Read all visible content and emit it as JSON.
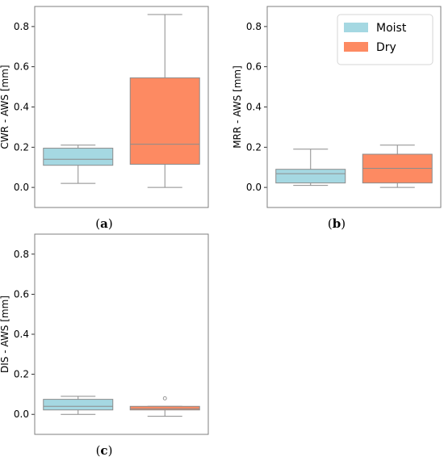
{
  "colors": {
    "moist": "#a5d8e2",
    "dry": "#fd8a62",
    "frame": "#7f7f7f",
    "whisker": "#8c8c8c"
  },
  "legend": {
    "entries": [
      "Moist",
      "Dry"
    ],
    "placement": "top-right",
    "panel": "b"
  },
  "chart_data": [
    {
      "type": "box",
      "panel_label": "(a)",
      "ylabel": "CWR - AWS [mm]",
      "ylim": [
        -0.1,
        0.9
      ],
      "yticks": [
        "0.0",
        "0.2",
        "0.4",
        "0.6",
        "0.8"
      ],
      "categories": [
        "Moist",
        "Dry"
      ],
      "series": [
        {
          "name": "Moist",
          "whislo": 0.02,
          "q1": 0.11,
          "median": 0.14,
          "q3": 0.195,
          "whishi": 0.21,
          "fliers": []
        },
        {
          "name": "Dry",
          "whislo": 0.0,
          "q1": 0.115,
          "median": 0.215,
          "q3": 0.545,
          "whishi": 0.86,
          "fliers": []
        }
      ]
    },
    {
      "type": "box",
      "panel_label": "(b)",
      "ylabel": "MRR - AWS [mm]",
      "ylim": [
        -0.1,
        0.9
      ],
      "yticks": [
        "0.0",
        "0.2",
        "0.4",
        "0.6",
        "0.8"
      ],
      "categories": [
        "Moist",
        "Dry"
      ],
      "series": [
        {
          "name": "Moist",
          "whislo": 0.01,
          "q1": 0.022,
          "median": 0.068,
          "q3": 0.09,
          "whishi": 0.19,
          "fliers": []
        },
        {
          "name": "Dry",
          "whislo": 0.0,
          "q1": 0.022,
          "median": 0.095,
          "q3": 0.165,
          "whishi": 0.21,
          "fliers": []
        }
      ]
    },
    {
      "type": "box",
      "panel_label": "(c)",
      "ylabel": "DIS - AWS [mm]",
      "ylim": [
        -0.1,
        0.9
      ],
      "yticks": [
        "0.0",
        "0.2",
        "0.4",
        "0.6",
        "0.8"
      ],
      "categories": [
        "Moist",
        "Dry"
      ],
      "series": [
        {
          "name": "Moist",
          "whislo": 0.0,
          "q1": 0.022,
          "median": 0.04,
          "q3": 0.075,
          "whishi": 0.09,
          "fliers": []
        },
        {
          "name": "Dry",
          "whislo": -0.01,
          "q1": 0.022,
          "median": 0.028,
          "q3": 0.04,
          "whishi": 0.04,
          "fliers": [
            0.08
          ]
        }
      ]
    }
  ]
}
